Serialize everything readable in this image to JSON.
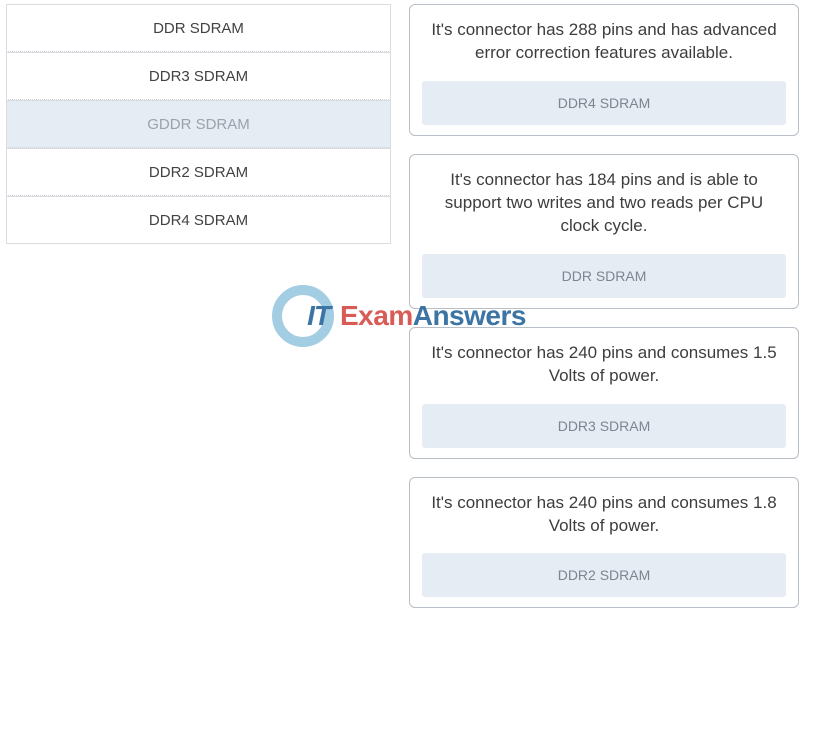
{
  "options": [
    {
      "label": "DDR SDRAM",
      "highlight": false
    },
    {
      "label": "DDR3 SDRAM",
      "highlight": false
    },
    {
      "label": "GDDR SDRAM",
      "highlight": true
    },
    {
      "label": "DDR2 SDRAM",
      "highlight": false
    },
    {
      "label": "DDR4 SDRAM",
      "highlight": false
    }
  ],
  "cards": [
    {
      "text": "It's connector has 288 pins and has advanced error correction features available.",
      "answer": "DDR4 SDRAM"
    },
    {
      "text": "It's connector has 184 pins and is able to support two writes and two reads per CPU clock cycle.",
      "answer": "DDR SDRAM"
    },
    {
      "text": "It's connector has 240 pins and consumes 1.5 Volts of power.",
      "answer": "DDR3 SDRAM"
    },
    {
      "text": "It's connector has 240 pins and consumes 1.8 Volts of power.",
      "answer": "DDR2 SDRAM"
    }
  ],
  "watermark": {
    "it": "IT",
    "exam": "Exam",
    "answers": "Answers"
  },
  "colors": {
    "card_border": "#b9bfc6",
    "option_border": "#d9dde2",
    "highlight_bg": "#e6ecf3",
    "text_primary": "#3d3d3d",
    "text_muted": "#7c8591",
    "wm_circle": "#9fcbe2",
    "wm_blue": "#326da0",
    "wm_red": "#d8534d"
  }
}
